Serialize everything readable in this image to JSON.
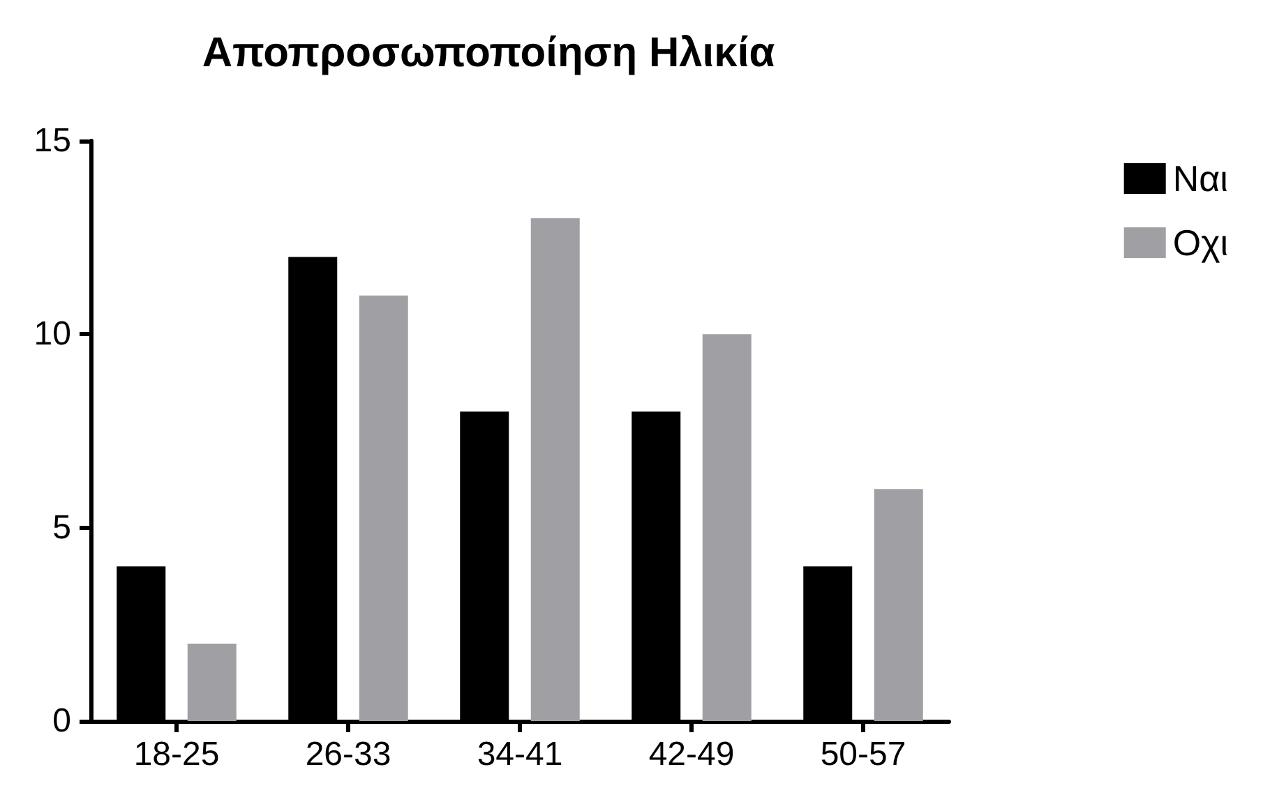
{
  "chart_data": {
    "type": "bar",
    "title": "Αποπροσωποποίηση Ηλικία",
    "categories": [
      "18-25",
      "26-33",
      "34-41",
      "42-49",
      "50-57"
    ],
    "series": [
      {
        "name": "Ναι",
        "color": "#000000",
        "values": [
          4,
          12,
          8,
          8,
          4
        ]
      },
      {
        "name": "Οχι",
        "color": "#a0a0a4",
        "values": [
          2,
          11,
          13,
          10,
          6
        ]
      }
    ],
    "ylim": [
      0,
      15
    ],
    "yticks": [
      0,
      5,
      10,
      15
    ],
    "grid": false,
    "legend": "top right"
  }
}
